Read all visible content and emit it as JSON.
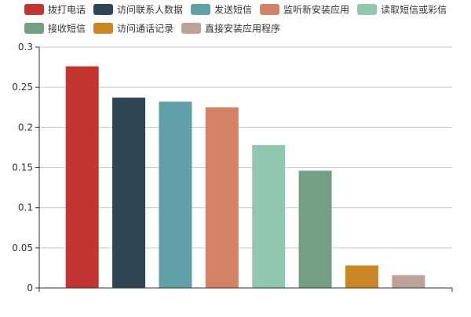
{
  "chart_data": {
    "type": "bar",
    "categories": [
      "拨打电话",
      "访问联系人数据",
      "发送短信",
      "监听新安装应用",
      "读取短信或彩信",
      "接收短信",
      "访问通话记录",
      "直接安装应用程序"
    ],
    "values": [
      0.276,
      0.237,
      0.232,
      0.225,
      0.178,
      0.146,
      0.028,
      0.016
    ],
    "colors": [
      "#c23531",
      "#2f4554",
      "#61a0a8",
      "#d48265",
      "#91c7ae",
      "#749f83",
      "#ca8622",
      "#bda29a"
    ],
    "ylim": [
      0,
      0.3
    ],
    "yticks": [
      "0",
      "0.05",
      "0.1",
      "0.15",
      "0.2",
      "0.25",
      "0.3"
    ],
    "grid": true,
    "legend_position": "top-left"
  }
}
